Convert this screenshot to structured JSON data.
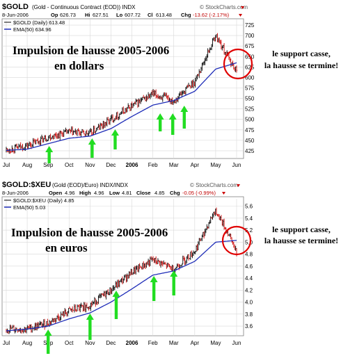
{
  "colors": {
    "up_bar": "#000000",
    "down_bar": "#cc0000",
    "ema": "#1f2db8",
    "arrow": "#22dd22",
    "circle": "#e00000",
    "grid": "#d8d8d8",
    "axis": "#808080"
  },
  "chart_data": [
    {
      "type": "line",
      "header": {
        "symbol": "$GOLD",
        "description": "(Gold - Continuous Contract (EOD)) INDX",
        "watermark": "© StockCharts.com",
        "date": "8-Jun-2006",
        "open_label": "Op",
        "open_value": "626.73",
        "high_label": "Hi",
        "high_value": "627.51",
        "low_label": "Lo",
        "low_value": "607.72",
        "close_label": "Cl",
        "close_value": "613.48",
        "chg_label": "Chg",
        "chg_value": "-13.62 (-2.17%)"
      },
      "legend": [
        {
          "text": "$GOLD (Daily) 613.48"
        },
        {
          "text": "EMA(50) 634.96"
        }
      ],
      "annotation_lines": [
        "Impulsion de hausse 2005-2006",
        "en dollars"
      ],
      "side_note": [
        "le support casse,",
        "la hausse se termine!"
      ],
      "y_ticks": [
        "725",
        "700",
        "675",
        "650",
        "625",
        "600",
        "575",
        "550",
        "525",
        "500",
        "475",
        "450",
        "425"
      ],
      "ylim": [
        410,
        735
      ],
      "x_ticks": [
        "Jul",
        "Aug",
        "Sep",
        "Oct",
        "Nov",
        "Dec",
        "2006",
        "Feb",
        "Mar",
        "Apr",
        "May",
        "Jun"
      ],
      "series": [
        {
          "x": [
            "Jul",
            "Aug",
            "Sep",
            "Oct",
            "Nov",
            "Dec",
            "2006",
            "Feb",
            "Mar",
            "Apr",
            "May",
            "Jun"
          ],
          "y": [
            427,
            437,
            458,
            470,
            466,
            500,
            532,
            560,
            545,
            590,
            700,
            613
          ]
        },
        {
          "x": [
            "Jul",
            "Aug",
            "Sep",
            "Oct",
            "Nov",
            "Dec",
            "2006",
            "Feb",
            "Mar",
            "Apr",
            "May",
            "Jun"
          ],
          "y": [
            426,
            429,
            442,
            455,
            460,
            478,
            507,
            534,
            545,
            567,
            620,
            635
          ]
        }
      ]
    },
    {
      "type": "line",
      "header": {
        "symbol": "$GOLD:$XEU",
        "description": "(Gold (EOD)/Euro) INDX/INDX",
        "watermark": "© StockCharts.com",
        "date": "8-Jun-2006",
        "open_label": "Open",
        "open_value": "4.96",
        "high_label": "High",
        "high_value": "4.96",
        "low_label": "Low",
        "low_value": "4.81",
        "close_label": "Close",
        "close_value": "4.85",
        "chg_label": "Chg",
        "chg_value": "-0.05 (-0.99%)"
      },
      "legend": [
        {
          "text": "$GOLD:$XEU (Daily) 4.85"
        },
        {
          "text": "EMA(50) 5.03"
        }
      ],
      "annotation_lines": [
        "Impulsion de hausse 2005-2006",
        "en euros"
      ],
      "side_note": [
        "le support casse,",
        "la hausse se termine!"
      ],
      "y_ticks": [
        "5.6",
        "5.4",
        "5.2",
        "5.0",
        "4.8",
        "4.6",
        "4.4",
        "4.2",
        "4.0",
        "3.8",
        "3.6"
      ],
      "ylim": [
        3.45,
        5.7
      ],
      "x_ticks": [
        "Jul",
        "Aug",
        "Sep",
        "Oct",
        "Nov",
        "Dec",
        "2006",
        "Feb",
        "Mar",
        "Apr",
        "May",
        "Jun"
      ],
      "series": [
        {
          "x": [
            "Jul",
            "Aug",
            "Sep",
            "Oct",
            "Nov",
            "Dec",
            "2006",
            "Feb",
            "Mar",
            "Apr",
            "May",
            "Jun"
          ],
          "y": [
            3.55,
            3.55,
            3.65,
            3.85,
            3.95,
            4.2,
            4.5,
            4.7,
            4.55,
            4.85,
            5.55,
            4.85
          ]
        },
        {
          "x": [
            "Jul",
            "Aug",
            "Sep",
            "Oct",
            "Nov",
            "Dec",
            "2006",
            "Feb",
            "Mar",
            "Apr",
            "May",
            "Jun"
          ],
          "y": [
            3.52,
            3.55,
            3.6,
            3.72,
            3.82,
            4.0,
            4.22,
            4.45,
            4.52,
            4.68,
            5.0,
            5.03
          ]
        }
      ]
    }
  ]
}
